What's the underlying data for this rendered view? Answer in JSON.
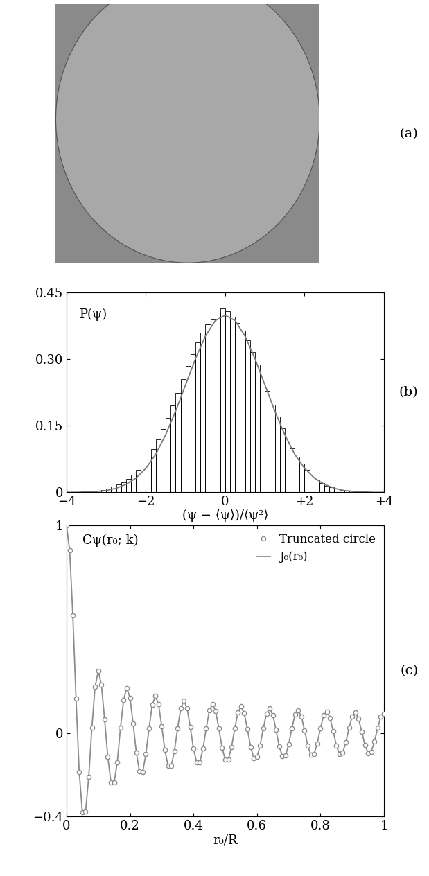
{
  "chart_data": [
    {
      "type": "image",
      "label": "(a)"
    },
    {
      "type": "histogram",
      "label": "(b)",
      "annotations": [
        "P(ψ)"
      ],
      "x_label": "(ψ − ⟨ψ⟩)/⟨ψ²⟩",
      "bins": [
        -4,
        -3.875,
        -3.75,
        -3.625,
        -3.5,
        -3.375,
        -3.25,
        -3.125,
        -3,
        -2.875,
        -2.75,
        -2.625,
        -2.5,
        -2.375,
        -2.25,
        -2.125,
        -2,
        -1.875,
        -1.75,
        -1.625,
        -1.5,
        -1.375,
        -1.25,
        -1.125,
        -1,
        -0.875,
        -0.75,
        -0.625,
        -0.5,
        -0.375,
        -0.25,
        -0.125,
        0,
        0.125,
        0.25,
        0.375,
        0.5,
        0.625,
        0.75,
        0.875,
        1,
        1.125,
        1.25,
        1.375,
        1.5,
        1.625,
        1.75,
        1.875,
        2,
        2.125,
        2.25,
        2.375,
        2.5,
        2.625,
        2.75,
        2.875,
        3,
        3.125,
        3.25,
        3.375,
        3.5,
        3.625,
        3.75,
        3.875,
        4
      ],
      "counts": [
        0,
        0,
        0,
        0.001,
        0.002,
        0.003,
        0.004,
        0.006,
        0.009,
        0.013,
        0.017,
        0.023,
        0.03,
        0.039,
        0.05,
        0.064,
        0.08,
        0.098,
        0.12,
        0.143,
        0.168,
        0.195,
        0.224,
        0.255,
        0.285,
        0.312,
        0.338,
        0.36,
        0.378,
        0.39,
        0.405,
        0.415,
        0.408,
        0.395,
        0.382,
        0.365,
        0.343,
        0.316,
        0.288,
        0.258,
        0.228,
        0.198,
        0.17,
        0.145,
        0.121,
        0.099,
        0.08,
        0.064,
        0.051,
        0.039,
        0.029,
        0.021,
        0.015,
        0.011,
        0.008,
        0.005,
        0.004,
        0.003,
        0.002,
        0.001,
        0.001,
        0,
        0,
        0
      ],
      "curve": {
        "x": [
          -4,
          -3.75,
          -3.5,
          -3.25,
          -3,
          -2.75,
          -2.5,
          -2.25,
          -2,
          -1.75,
          -1.5,
          -1.25,
          -1,
          -0.75,
          -0.5,
          -0.25,
          0,
          0.25,
          0.5,
          0.75,
          1,
          1.25,
          1.5,
          1.75,
          2,
          2.25,
          2.5,
          2.75,
          3,
          3.25,
          3.5,
          3.75,
          4
        ],
        "values": [
          0,
          0,
          0.001,
          0.002,
          0.004,
          0.009,
          0.018,
          0.032,
          0.054,
          0.086,
          0.13,
          0.183,
          0.242,
          0.301,
          0.352,
          0.387,
          0.399,
          0.387,
          0.352,
          0.301,
          0.242,
          0.183,
          0.13,
          0.086,
          0.054,
          0.032,
          0.018,
          0.009,
          0.004,
          0.002,
          0.001,
          0,
          0
        ]
      },
      "xlim": [
        -4,
        4
      ],
      "xticks": [
        {
          "value": -4,
          "label": "−4"
        },
        {
          "value": -2,
          "label": "−2"
        },
        0,
        {
          "value": 2,
          "label": "+2"
        },
        {
          "value": 4,
          "label": "+4"
        }
      ],
      "ylim": [
        0,
        0.45
      ],
      "yticks": [
        0,
        0.15,
        {
          "value": 0.3,
          "label": "0.30"
        },
        0.45
      ]
    },
    {
      "type": "line",
      "label": "(c)",
      "annotations": [
        "Cψ(r₀; k)"
      ],
      "x_label": "r₀/R",
      "x": [
        0,
        0.01,
        0.02,
        0.03,
        0.04,
        0.05,
        0.06,
        0.07,
        0.08,
        0.09,
        0.1,
        0.11,
        0.12,
        0.13,
        0.14,
        0.15,
        0.16,
        0.17,
        0.18,
        0.19,
        0.2,
        0.21,
        0.22,
        0.23,
        0.24,
        0.25,
        0.26,
        0.27,
        0.28,
        0.29,
        0.3,
        0.31,
        0.32,
        0.33,
        0.34,
        0.35,
        0.36,
        0.37,
        0.38,
        0.39,
        0.4,
        0.41,
        0.42,
        0.43,
        0.44,
        0.45,
        0.46,
        0.47,
        0.48,
        0.49,
        0.5,
        0.51,
        0.52,
        0.53,
        0.54,
        0.55,
        0.56,
        0.57,
        0.58,
        0.59,
        0.6,
        0.61,
        0.62,
        0.63,
        0.64,
        0.65,
        0.66,
        0.67,
        0.68,
        0.69,
        0.7,
        0.71,
        0.72,
        0.73,
        0.74,
        0.75,
        0.76,
        0.77,
        0.78,
        0.79,
        0.8,
        0.81,
        0.82,
        0.83,
        0.84,
        0.85,
        0.86,
        0.87,
        0.88,
        0.89,
        0.9,
        0.91,
        0.92,
        0.93,
        0.94,
        0.95,
        0.96,
        0.97,
        0.98,
        0.99,
        1
      ],
      "series": [
        {
          "name": "Truncated circle",
          "type": "scatter",
          "marker": "o",
          "color": "#8c8c8c",
          "values": [
            1,
            0.881,
            0.567,
            0.167,
            -0.185,
            -0.38,
            -0.377,
            -0.21,
            0.027,
            0.224,
            0.3,
            0.234,
            0.068,
            -0.114,
            -0.235,
            -0.237,
            -0.139,
            0.027,
            0.162,
            0.219,
            0.171,
            0.046,
            -0.094,
            -0.184,
            -0.186,
            -0.101,
            0.025,
            0.137,
            0.18,
            0.139,
            0.035,
            -0.081,
            -0.157,
            -0.157,
            -0.085,
            0.025,
            0.12,
            0.157,
            0.12,
            0.029,
            -0.074,
            -0.14,
            -0.139,
            -0.073,
            0.024,
            0.109,
            0.141,
            0.106,
            0.023,
            -0.069,
            -0.127,
            -0.125,
            -0.065,
            0.024,
            0.101,
            0.129,
            0.096,
            0.019,
            -0.065,
            -0.118,
            -0.114,
            -0.058,
            0.025,
            0.094,
            0.119,
            0.088,
            0.016,
            -0.062,
            -0.11,
            -0.106,
            -0.052,
            0.025,
            0.09,
            0.111,
            0.081,
            0.013,
            -0.06,
            -0.104,
            -0.099,
            -0.048,
            0.025,
            0.086,
            0.105,
            0.075,
            0.011,
            -0.058,
            -0.099,
            -0.093,
            -0.044,
            0.026,
            0.082,
            0.1,
            0.07,
            0.008,
            -0.057,
            -0.095,
            -0.088,
            -0.04,
            0.026,
            0.079,
            0.095
          ]
        },
        {
          "name": "J₀(r₀)",
          "type": "line",
          "line_style": "solid",
          "color": "#8c8c8c",
          "values": [
            1,
            0.881,
            0.567,
            0.167,
            -0.185,
            -0.38,
            -0.377,
            -0.21,
            0.027,
            0.224,
            0.3,
            0.234,
            0.068,
            -0.114,
            -0.235,
            -0.237,
            -0.139,
            0.027,
            0.162,
            0.219,
            0.171,
            0.046,
            -0.094,
            -0.184,
            -0.186,
            -0.101,
            0.025,
            0.137,
            0.18,
            0.139,
            0.035,
            -0.081,
            -0.157,
            -0.157,
            -0.085,
            0.025,
            0.12,
            0.157,
            0.12,
            0.029,
            -0.074,
            -0.14,
            -0.139,
            -0.073,
            0.024,
            0.109,
            0.141,
            0.106,
            0.023,
            -0.069,
            -0.127,
            -0.125,
            -0.065,
            0.024,
            0.101,
            0.129,
            0.096,
            0.019,
            -0.065,
            -0.118,
            -0.114,
            -0.058,
            0.025,
            0.094,
            0.119,
            0.088,
            0.016,
            -0.062,
            -0.11,
            -0.106,
            -0.052,
            0.025,
            0.09,
            0.111,
            0.081,
            0.013,
            -0.06,
            -0.104,
            -0.099,
            -0.048,
            0.025,
            0.086,
            0.105,
            0.075,
            0.011,
            -0.058,
            -0.099,
            -0.093,
            -0.044,
            0.026,
            0.082,
            0.1,
            0.07,
            0.008,
            -0.057,
            -0.095,
            -0.088,
            -0.04,
            0.026,
            0.079,
            0.095
          ]
        }
      ],
      "xlim": [
        0,
        1
      ],
      "xticks": [
        0,
        0.2,
        0.4,
        0.6,
        0.8,
        1
      ],
      "ylim": [
        -0.4,
        1
      ],
      "yticks": [
        {
          "value": -0.4,
          "label": "−0.4"
        },
        0,
        1
      ],
      "legend": "upper right"
    }
  ]
}
